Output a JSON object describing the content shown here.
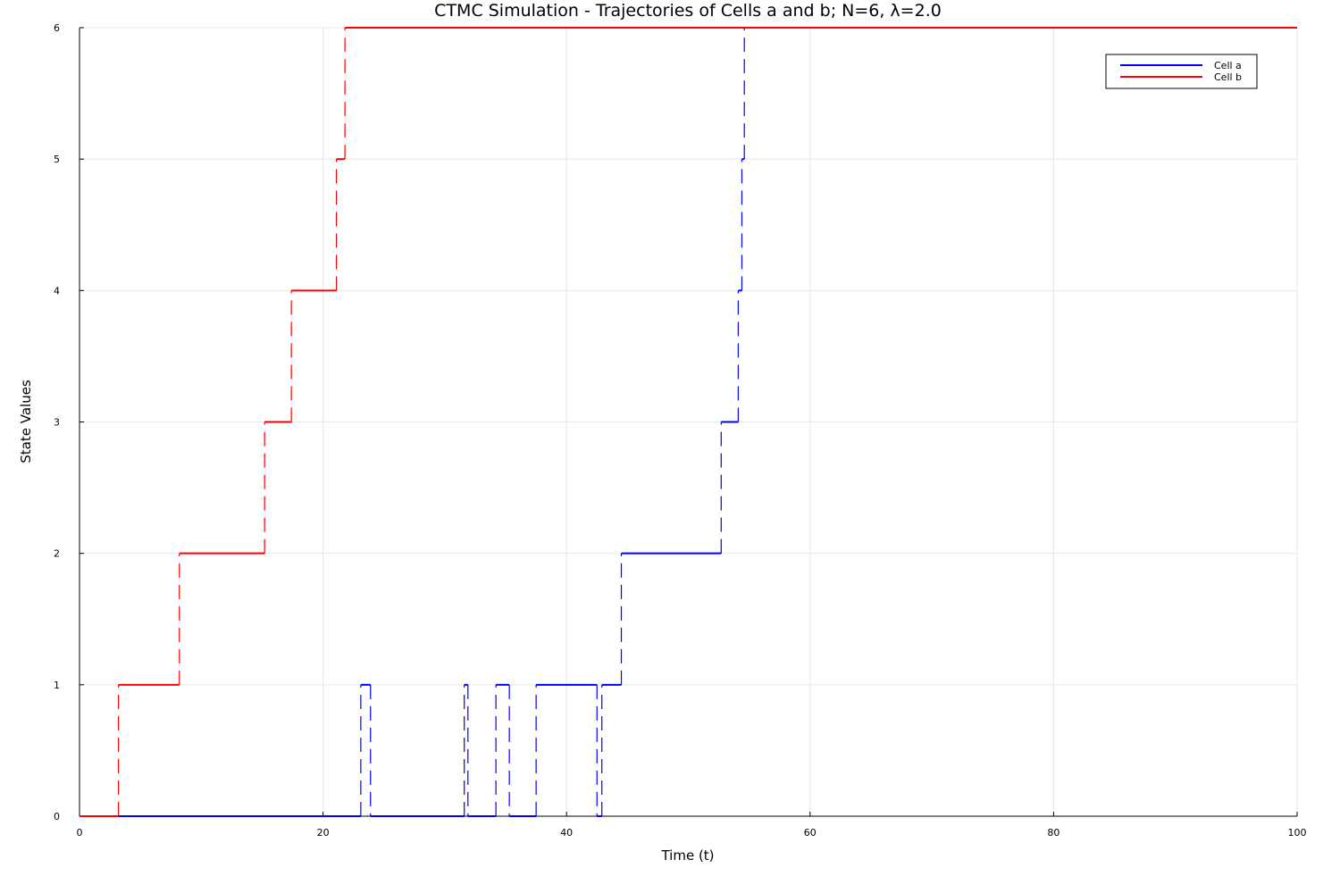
{
  "chart_data": {
    "type": "line",
    "title": "CTMC Simulation - Trajectories of Cells a and b; N=6, λ=2.0",
    "xlabel": "Time (t)",
    "ylabel": "State Values",
    "xlim": [
      0,
      100
    ],
    "ylim": [
      0,
      6
    ],
    "xticks": [
      0,
      20,
      40,
      60,
      80,
      100
    ],
    "yticks": [
      0,
      1,
      2,
      3,
      4,
      5,
      6
    ],
    "grid": true,
    "legend_position": "top-right",
    "line_style": "step (horizontal solid, vertical jumps dashed)",
    "series": [
      {
        "name": "Cell a",
        "color": "#0000ff",
        "x": [
          0,
          23.1,
          23.9,
          31.6,
          31.9,
          34.2,
          35.3,
          37.5,
          42.5,
          42.9,
          44.5,
          52.7,
          54.1,
          54.4,
          54.6,
          100
        ],
        "y": [
          0,
          1,
          0,
          1,
          0,
          1,
          0,
          1,
          0,
          1,
          2,
          3,
          4,
          5,
          6,
          6
        ]
      },
      {
        "name": "Cell b",
        "color": "#ff0000",
        "x": [
          0,
          3.2,
          8.2,
          15.2,
          17.4,
          21.1,
          21.8,
          100
        ],
        "y": [
          0,
          1,
          2,
          3,
          4,
          5,
          6,
          6
        ]
      }
    ]
  }
}
